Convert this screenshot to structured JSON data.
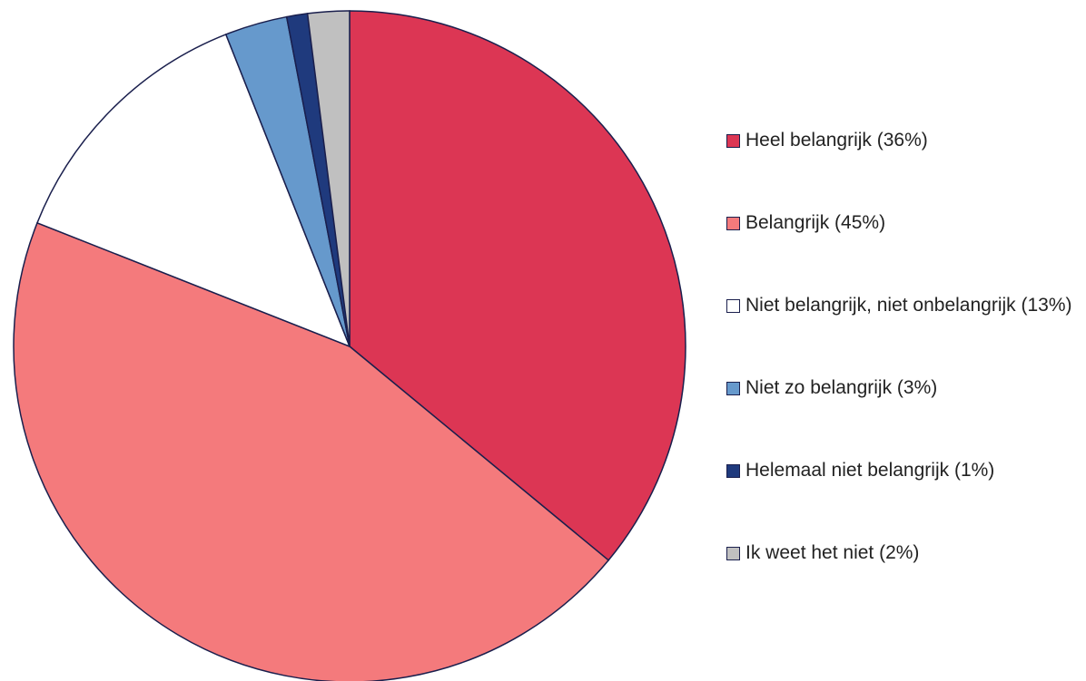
{
  "chart_data": {
    "type": "pie",
    "categories": [
      "Heel belangrijk (36%)",
      "Belangrijk (45%)",
      "Niet belangrijk, niet onbelangrijk (13%)",
      "Niet zo belangrijk (3%)",
      "Helemaal niet belangrijk (1%)",
      "Ik weet het niet (2%)"
    ],
    "values": [
      36,
      45,
      13,
      3,
      1,
      2
    ],
    "colors": [
      "#dc3654",
      "#f47a7c",
      "#ffffff",
      "#6699cc",
      "#1f3a7d",
      "#c0c0c0"
    ],
    "legend": "right"
  }
}
